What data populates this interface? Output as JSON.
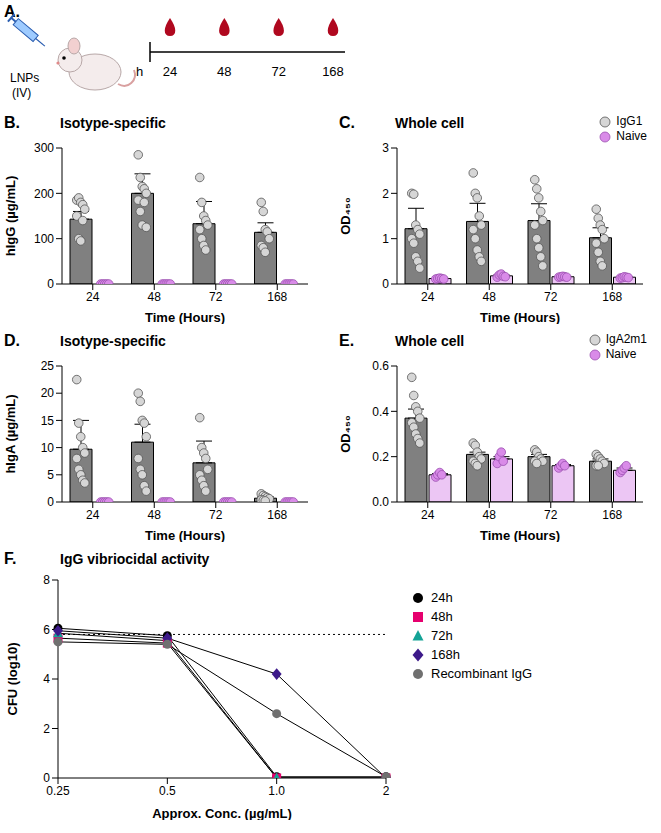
{
  "diagram": {
    "panel": "A.",
    "labels": [
      "LNPs",
      "(IV)"
    ],
    "time_unit": "h",
    "timepoints": [
      24,
      48,
      72,
      168
    ]
  },
  "chart_data": [
    {
      "panel": "B.",
      "type": "bar",
      "title": "Isotype-specific",
      "x_label": "Time (Hours)",
      "y_label": "hIgG (µg/mL)",
      "categories": [
        "24",
        "48",
        "72",
        "168"
      ],
      "ylim": [
        0,
        300
      ],
      "yticks": [
        0,
        100,
        200,
        300
      ],
      "grid": false,
      "series": [
        {
          "color": "#808080",
          "values": [
            143,
            200,
            133,
            114
          ],
          "errors": [
            17,
            43,
            49,
            21
          ],
          "points": [
            [
              185,
              190,
              180,
              175,
              165,
              150,
              100,
              95,
              140
            ],
            [
              285,
              235,
              215,
              210,
              200,
              185,
              160,
              130,
              180,
              125
            ],
            [
              235,
              180,
              150,
              140,
              130,
              120,
              100,
              85,
              75
            ],
            [
              180,
              160,
              120,
              115,
              100,
              85,
              80,
              70
            ]
          ]
        },
        {
          "color": "#ecc6f4",
          "values": [
            0,
            0,
            0,
            0
          ],
          "errors": [
            0,
            0,
            0,
            0
          ],
          "points": [
            [
              0,
              0,
              0,
              0,
              0
            ],
            [
              0,
              0,
              0,
              0,
              0
            ],
            [
              0,
              0,
              0,
              0,
              0
            ],
            [
              0,
              0,
              0,
              0,
              0
            ]
          ]
        }
      ]
    },
    {
      "panel": "C.",
      "type": "bar",
      "title": "Whole cell",
      "x_label": "Time (Hours)",
      "y_label": "OD₄₅₀",
      "categories": [
        "24",
        "48",
        "72",
        "168"
      ],
      "ylim": [
        0,
        3
      ],
      "yticks": [
        0,
        1,
        2,
        3
      ],
      "grid": false,
      "legend": "upper right",
      "series": [
        {
          "name": "IgG1",
          "color": "#808080",
          "values": [
            1.22,
            1.38,
            1.4,
            1.02
          ],
          "errors": [
            0.45,
            0.4,
            0.37,
            0.22
          ],
          "points": [
            [
              2.0,
              1.98,
              1.3,
              1.2,
              1.1,
              1.0,
              0.9,
              0.6,
              0.5,
              0.35
            ],
            [
              2.45,
              2.0,
              1.9,
              1.5,
              1.3,
              1.2,
              1.0,
              0.75,
              0.6,
              0.5
            ],
            [
              2.3,
              2.1,
              1.9,
              1.6,
              1.4,
              1.3,
              1.0,
              0.8,
              0.6,
              0.4
            ],
            [
              1.65,
              1.45,
              1.3,
              1.2,
              1.0,
              0.9,
              0.7,
              0.5,
              0.4
            ]
          ]
        },
        {
          "name": "Naive",
          "color": "#ecc6f4",
          "values": [
            0.12,
            0.18,
            0.16,
            0.15
          ],
          "errors": [
            0.01,
            0.02,
            0.01,
            0.01
          ],
          "points": [
            [
              0.11,
              0.12,
              0.13,
              0.12,
              0.11
            ],
            [
              0.15,
              0.2,
              0.22,
              0.17,
              0.16
            ],
            [
              0.15,
              0.16,
              0.17,
              0.16,
              0.15
            ],
            [
              0.13,
              0.14,
              0.16,
              0.15,
              0.14
            ]
          ]
        }
      ]
    },
    {
      "panel": "D.",
      "type": "bar",
      "title": "Isotype-specific",
      "x_label": "Time (Hours)",
      "y_label": "hIgA (µg/mL)",
      "categories": [
        "24",
        "48",
        "72",
        "168"
      ],
      "ylim": [
        0,
        25
      ],
      "yticks": [
        0,
        5,
        10,
        15,
        20,
        25
      ],
      "grid": false,
      "series": [
        {
          "color": "#808080",
          "values": [
            9.7,
            11.0,
            7.2,
            0.7
          ],
          "errors": [
            5.3,
            3.3,
            4.0,
            0.3
          ],
          "points": [
            [
              22.5,
              14.5,
              12,
              10,
              9,
              8,
              6,
              5,
              4,
              3.5
            ],
            [
              20,
              18.5,
              15,
              14.5,
              12,
              8,
              6,
              5,
              3,
              2
            ],
            [
              15.5,
              10,
              9,
              8,
              6,
              5,
              4,
              3,
              2
            ],
            [
              1.5,
              1.2,
              1,
              0.8,
              0.6,
              0.4,
              0.3,
              0.2
            ]
          ]
        },
        {
          "color": "#ecc6f4",
          "values": [
            0,
            0,
            0,
            0
          ],
          "errors": [
            0,
            0,
            0,
            0
          ],
          "points": [
            [
              0,
              0,
              0,
              0,
              0
            ],
            [
              0,
              0,
              0,
              0,
              0
            ],
            [
              0,
              0,
              0,
              0,
              0
            ],
            [
              0,
              0,
              0,
              0,
              0
            ]
          ]
        }
      ]
    },
    {
      "panel": "E.",
      "type": "bar",
      "title": "Whole cell",
      "x_label": "Time (Hours)",
      "y_label": "OD₄₅₀",
      "categories": [
        "24",
        "48",
        "72",
        "168"
      ],
      "ylim": [
        0,
        0.6
      ],
      "yticks": [
        {
          "value": 0,
          "label": "0.0"
        },
        0.2,
        0.4,
        0.6
      ],
      "grid": false,
      "legend": "upper right",
      "series": [
        {
          "name": "IgA2m1",
          "color": "#808080",
          "values": [
            0.37,
            0.21,
            0.2,
            0.18
          ],
          "errors": [
            0.04,
            0.01,
            0.01,
            0.01
          ],
          "points": [
            [
              0.55,
              0.47,
              0.42,
              0.4,
              0.37,
              0.35,
              0.33,
              0.3,
              0.28,
              0.26
            ],
            [
              0.26,
              0.25,
              0.22,
              0.2,
              0.19,
              0.18,
              0.17,
              0.16
            ],
            [
              0.23,
              0.22,
              0.2,
              0.19,
              0.18,
              0.18,
              0.17
            ],
            [
              0.21,
              0.2,
              0.19,
              0.18,
              0.17,
              0.16,
              0.16
            ]
          ]
        },
        {
          "name": "Naive",
          "color": "#ecc6f4",
          "values": [
            0.12,
            0.19,
            0.16,
            0.14
          ],
          "errors": [
            0.005,
            0.01,
            0.005,
            0.01
          ],
          "points": [
            [
              0.11,
              0.12,
              0.13,
              0.12
            ],
            [
              0.17,
              0.2,
              0.22,
              0.18
            ],
            [
              0.15,
              0.16,
              0.17,
              0.16
            ],
            [
              0.13,
              0.14,
              0.15,
              0.16
            ]
          ]
        }
      ]
    },
    {
      "panel": "F.",
      "type": "line",
      "title": "IgG vibriocidal activity",
      "x_label": "Approx. Conc. (µg/mL)",
      "y_label": "CFU (log10)",
      "categories": [
        "0.25",
        "0.5",
        "1.0",
        "2"
      ],
      "ylim": [
        0,
        8
      ],
      "yticks": [
        0,
        2,
        4,
        6,
        8
      ],
      "grid": false,
      "legend": "upper right",
      "reference_line": {
        "value": 5.8,
        "line_style": "dotted"
      },
      "series": [
        {
          "name": "24h",
          "color": "#000000",
          "marker": "circle",
          "values": [
            6.05,
            5.75,
            0.05,
            0.05
          ]
        },
        {
          "name": "48h",
          "color": "#e6006e",
          "marker": "square",
          "values": [
            5.65,
            5.45,
            0,
            0
          ]
        },
        {
          "name": "72h",
          "color": "#14a396",
          "marker": "triangle",
          "values": [
            5.85,
            5.55,
            0,
            0
          ]
        },
        {
          "name": "168h",
          "color": "#3d1a8a",
          "marker": "diamond",
          "values": [
            5.95,
            5.65,
            4.2,
            0
          ]
        },
        {
          "name": "Recombinant IgG",
          "color": "#707070",
          "marker": "circle",
          "values": [
            5.5,
            5.4,
            2.6,
            0.05
          ]
        }
      ]
    }
  ]
}
